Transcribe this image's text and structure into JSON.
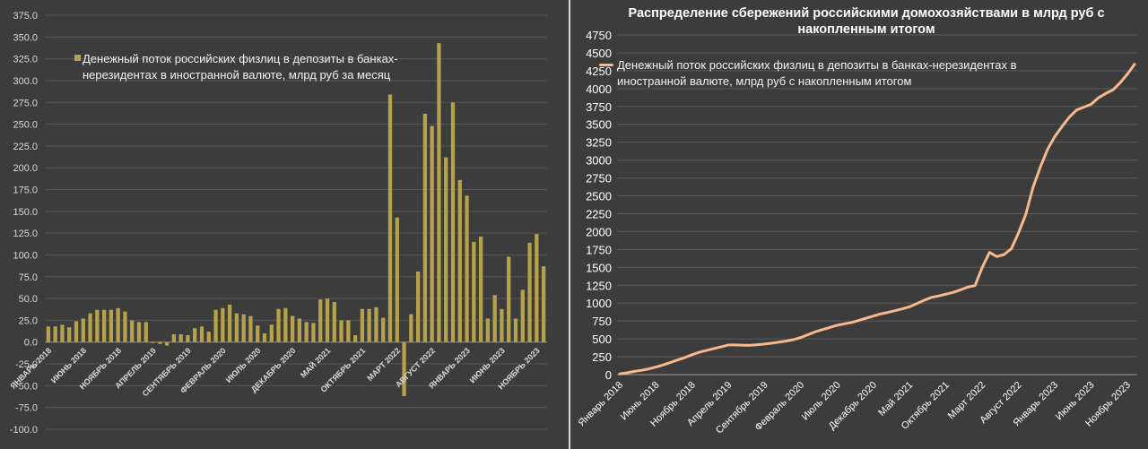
{
  "chart_data": [
    {
      "type": "bar",
      "title": "",
      "xlabel": "",
      "ylabel": "",
      "ylim": [
        -100,
        375
      ],
      "y_ticks": [
        "-100.0",
        "-75.0",
        "-50.0",
        "-25.0",
        "0.0",
        "25.0",
        "50.0",
        "75.0",
        "100.0",
        "125.0",
        "150.0",
        "175.0",
        "200.0",
        "225.0",
        "250.0",
        "275.0",
        "300.0",
        "325.0",
        "350.0",
        "375.0"
      ],
      "x_tick_labels": [
        "ЯНВАРЬ 2018",
        "ИЮНЬ 2018",
        "НОЯБРЬ 2018",
        "АПРЕЛЬ 2019",
        "СЕНТЯБРЬ 2019",
        "ФЕВРАЛЬ 2020",
        "ИЮЛЬ 2020",
        "ДЕКАБРЬ 2020",
        "МАЙ 2021",
        "ОКТЯБРЬ 2021",
        "МАРТ 2022",
        "АВГУСТ 2022",
        "ЯНВАРЬ 2023",
        "ИЮНЬ 2023",
        "НОЯБРЬ 2023"
      ],
      "grid": true,
      "legend_position": "top-left",
      "series": [
        {
          "name": "Денежный поток российских физлиц в депозиты в банках-нерезидентах в иностранной валюте, млрд руб за месяц",
          "color": "#b5a24a",
          "values": [
            18,
            18,
            20,
            17,
            24,
            27,
            33,
            37,
            37,
            37,
            39,
            35,
            25,
            23,
            23,
            -1,
            -2,
            -4,
            9,
            9,
            8,
            16,
            18,
            12,
            37,
            39,
            43,
            33,
            32,
            30,
            19,
            10,
            20,
            38,
            39,
            30,
            27,
            23,
            22,
            49,
            50,
            46,
            25,
            25,
            8,
            38,
            38,
            40,
            28,
            284,
            143,
            -62,
            32,
            81,
            262,
            248,
            343,
            212,
            275,
            186,
            168,
            115,
            121,
            27,
            54,
            38,
            98,
            27,
            60,
            114,
            124,
            87
          ]
        }
      ]
    },
    {
      "type": "line",
      "title": "Распределение сбережений российскими домохозяйствами в млрд руб с накопленным итогом",
      "xlabel": "",
      "ylabel": "",
      "ylim": [
        0,
        4750
      ],
      "y_ticks": [
        "0",
        "250",
        "500",
        "750",
        "1000",
        "1250",
        "1500",
        "1750",
        "2000",
        "2250",
        "2500",
        "2750",
        "3000",
        "3250",
        "3500",
        "3750",
        "4000",
        "4250",
        "4500",
        "4750"
      ],
      "x_tick_labels": [
        "Январь 2018",
        "Июнь 2018",
        "Ноябрь 2018",
        "Апрель 2019",
        "Сентябрь 2019",
        "Февраль 2020",
        "Июль 2020",
        "Декабрь 2020",
        "Май 2021",
        "Октябрь 2021",
        "Март 2022",
        "Август 2022",
        "Январь 2023",
        "Июнь 2023",
        "Ноябрь 2023"
      ],
      "grid": true,
      "legend_position": "top-left",
      "series": [
        {
          "name": "Денежный поток российских физлиц в депозиты в банках-нерезидентах в иностранной валюте, млрд руб с накопленным итогом",
          "color": "#f7b98c",
          "values": [
            10,
            25,
            45,
            60,
            80,
            105,
            135,
            170,
            205,
            240,
            280,
            315,
            340,
            365,
            390,
            415,
            415,
            410,
            410,
            418,
            428,
            440,
            455,
            470,
            490,
            520,
            560,
            600,
            630,
            660,
            690,
            710,
            730,
            760,
            790,
            820,
            850,
            870,
            895,
            920,
            950,
            995,
            1040,
            1080,
            1100,
            1125,
            1150,
            1185,
            1225,
            1245,
            1500,
            1710,
            1650,
            1680,
            1760,
            1980,
            2240,
            2620,
            2900,
            3150,
            3330,
            3470,
            3600,
            3700,
            3740,
            3780,
            3870,
            3930,
            3980,
            4080,
            4200,
            4340
          ]
        }
      ]
    }
  ]
}
